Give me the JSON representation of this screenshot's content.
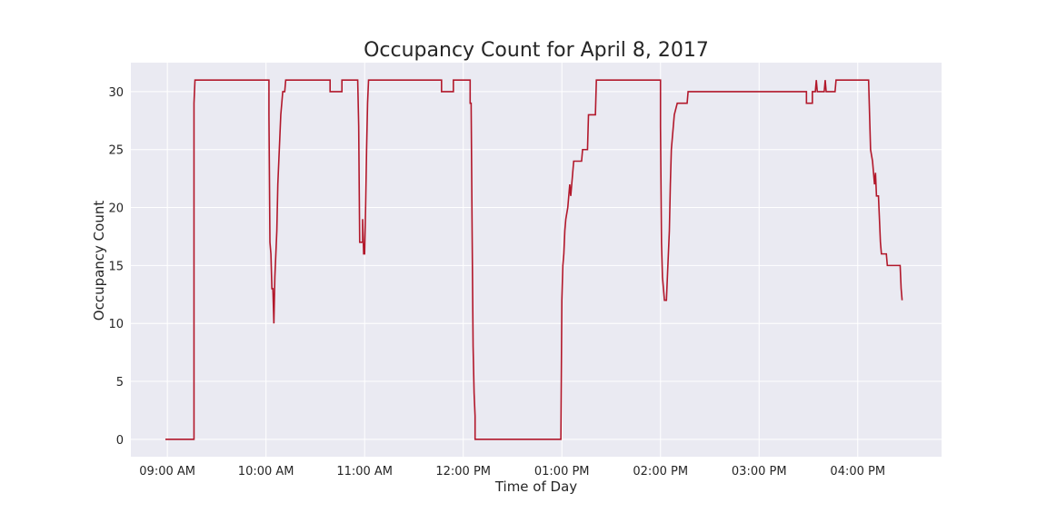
{
  "chart_data": {
    "type": "line",
    "title": "Occupancy Count for April 8, 2017",
    "xlabel": "Time of Day",
    "ylabel": "Occupancy Count",
    "x_unit": "time of day (hours, 24h)",
    "xlim": [
      8.63,
      16.85
    ],
    "ylim": [
      -1.5,
      32.5
    ],
    "yticks": [
      0,
      5,
      10,
      15,
      20,
      25,
      30
    ],
    "xticks": [
      {
        "value": 9,
        "label": "09:00 AM"
      },
      {
        "value": 10,
        "label": "10:00 AM"
      },
      {
        "value": 11,
        "label": "11:00 AM"
      },
      {
        "value": 12,
        "label": "12:00 PM"
      },
      {
        "value": 13,
        "label": "01:00 PM"
      },
      {
        "value": 14,
        "label": "02:00 PM"
      },
      {
        "value": 15,
        "label": "03:00 PM"
      },
      {
        "value": 16,
        "label": "04:00 PM"
      }
    ],
    "grid": true,
    "background": "#eaeaf2",
    "line_color": "#b2182b",
    "series": [
      {
        "points": [
          [
            8.98,
            0
          ],
          [
            9.27,
            0
          ],
          [
            9.27,
            29
          ],
          [
            9.28,
            31
          ],
          [
            10.03,
            31
          ],
          [
            10.03,
            28
          ],
          [
            10.04,
            17
          ],
          [
            10.05,
            16
          ],
          [
            10.06,
            13
          ],
          [
            10.07,
            13
          ],
          [
            10.08,
            10
          ],
          [
            10.09,
            14
          ],
          [
            10.1,
            16
          ],
          [
            10.11,
            18
          ],
          [
            10.12,
            22
          ],
          [
            10.13,
            24
          ],
          [
            10.14,
            26
          ],
          [
            10.15,
            28
          ],
          [
            10.16,
            29
          ],
          [
            10.17,
            30
          ],
          [
            10.19,
            30
          ],
          [
            10.2,
            31
          ],
          [
            10.65,
            31
          ],
          [
            10.65,
            30
          ],
          [
            10.77,
            30
          ],
          [
            10.77,
            31
          ],
          [
            10.93,
            31
          ],
          [
            10.94,
            27
          ],
          [
            10.95,
            17
          ],
          [
            10.98,
            17
          ],
          [
            10.98,
            19
          ],
          [
            10.99,
            16
          ],
          [
            11.0,
            16
          ],
          [
            11.01,
            20
          ],
          [
            11.02,
            25
          ],
          [
            11.03,
            29
          ],
          [
            11.04,
            31
          ],
          [
            11.78,
            31
          ],
          [
            11.78,
            30
          ],
          [
            11.9,
            30
          ],
          [
            11.9,
            31
          ],
          [
            12.07,
            31
          ],
          [
            12.07,
            29
          ],
          [
            12.08,
            29
          ],
          [
            12.09,
            18
          ],
          [
            12.1,
            8
          ],
          [
            12.11,
            4
          ],
          [
            12.12,
            2
          ],
          [
            12.12,
            0
          ],
          [
            12.99,
            0
          ],
          [
            13.0,
            12
          ],
          [
            13.01,
            15
          ],
          [
            13.02,
            16
          ],
          [
            13.03,
            18
          ],
          [
            13.04,
            19
          ],
          [
            13.06,
            20
          ],
          [
            13.07,
            21
          ],
          [
            13.08,
            22
          ],
          [
            13.09,
            21
          ],
          [
            13.1,
            22
          ],
          [
            13.11,
            23
          ],
          [
            13.12,
            24
          ],
          [
            13.2,
            24
          ],
          [
            13.21,
            25
          ],
          [
            13.26,
            25
          ],
          [
            13.27,
            28
          ],
          [
            13.34,
            28
          ],
          [
            13.35,
            31
          ],
          [
            14.0,
            31
          ],
          [
            14.0,
            27
          ],
          [
            14.01,
            17
          ],
          [
            14.02,
            14
          ],
          [
            14.03,
            13
          ],
          [
            14.04,
            12
          ],
          [
            14.06,
            12
          ],
          [
            14.07,
            14
          ],
          [
            14.08,
            16
          ],
          [
            14.09,
            18
          ],
          [
            14.1,
            22
          ],
          [
            14.11,
            25
          ],
          [
            14.12,
            26
          ],
          [
            14.13,
            27
          ],
          [
            14.14,
            28
          ],
          [
            14.17,
            29
          ],
          [
            14.27,
            29
          ],
          [
            14.28,
            30
          ],
          [
            15.48,
            30
          ],
          [
            15.48,
            29
          ],
          [
            15.54,
            29
          ],
          [
            15.54,
            30
          ],
          [
            15.57,
            30
          ],
          [
            15.58,
            31
          ],
          [
            15.59,
            30
          ],
          [
            15.66,
            30
          ],
          [
            15.67,
            31
          ],
          [
            15.68,
            30
          ],
          [
            15.77,
            30
          ],
          [
            15.78,
            31
          ],
          [
            16.11,
            31
          ],
          [
            16.12,
            28
          ],
          [
            16.13,
            25
          ],
          [
            16.15,
            24
          ],
          [
            16.16,
            23
          ],
          [
            16.17,
            22
          ],
          [
            16.18,
            23
          ],
          [
            16.19,
            21
          ],
          [
            16.21,
            21
          ],
          [
            16.22,
            19
          ],
          [
            16.23,
            17
          ],
          [
            16.24,
            16
          ],
          [
            16.29,
            16
          ],
          [
            16.3,
            15
          ],
          [
            16.43,
            15
          ],
          [
            16.44,
            13
          ],
          [
            16.45,
            12
          ]
        ]
      }
    ]
  }
}
